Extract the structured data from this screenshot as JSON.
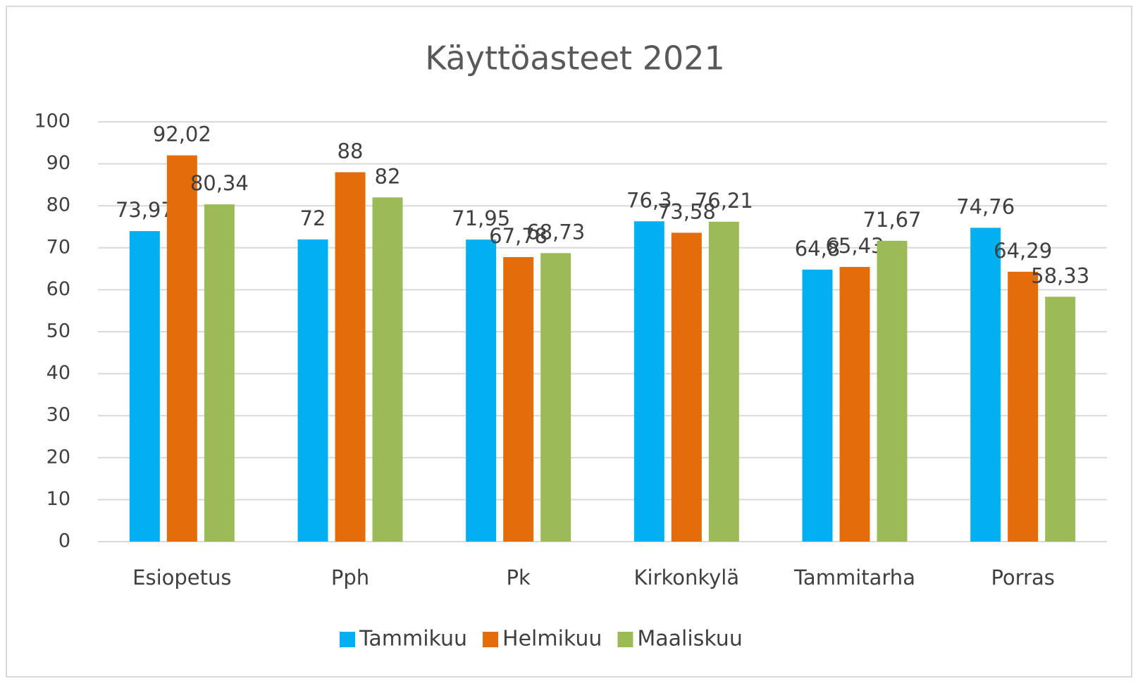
{
  "chart_data": {
    "type": "bar",
    "title": "Käyttöasteet 2021",
    "categories": [
      "Esiopetus",
      "Pph",
      "Pk",
      "Kirkonkylä",
      "Tammitarha",
      "Porras"
    ],
    "series": [
      {
        "name": "Tammikuu",
        "color": "#00b0f0",
        "values": [
          73.97,
          72,
          71.95,
          76.3,
          64.8,
          74.76
        ],
        "value_labels": [
          "73,97",
          "72",
          "71,95",
          "76,3",
          "64,8",
          "74,76"
        ]
      },
      {
        "name": "Helmikuu",
        "color": "#e46c0a",
        "values": [
          92.02,
          88,
          67.78,
          73.58,
          65.43,
          64.29
        ],
        "value_labels": [
          "92,02",
          "88",
          "67,78",
          "73,58",
          "65,43",
          "64,29"
        ]
      },
      {
        "name": "Maaliskuu",
        "color": "#9bbb59",
        "values": [
          80.34,
          82,
          68.73,
          76.21,
          71.67,
          58.33
        ],
        "value_labels": [
          "80,34",
          "82",
          "68,73",
          "76,21",
          "71,67",
          "58,33"
        ]
      }
    ],
    "ylim": [
      0,
      100
    ],
    "yticks": [
      0,
      10,
      20,
      30,
      40,
      50,
      60,
      70,
      80,
      90,
      100
    ],
    "grid": true,
    "legend": "bottom"
  }
}
